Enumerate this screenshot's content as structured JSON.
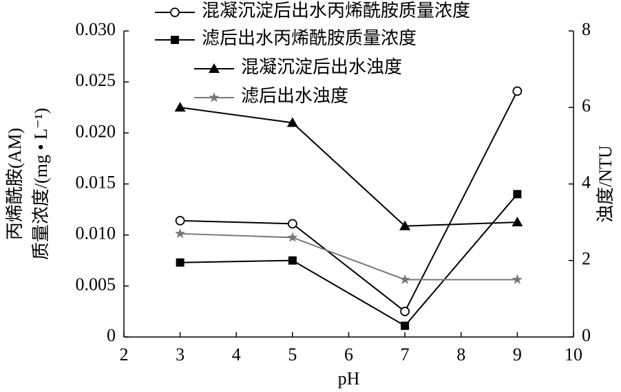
{
  "chart_data": {
    "type": "line",
    "x_label": "pH",
    "y_label": [
      "丙烯酰胺(AM)",
      "质量浓度/(mg • L⁻¹)"
    ],
    "y2_label": "浊度/NTU",
    "x": [
      3,
      5,
      7,
      9
    ],
    "xlim": [
      2,
      10
    ],
    "xticks": [
      2,
      3,
      4,
      5,
      6,
      7,
      8,
      9,
      10
    ],
    "ylim": [
      0,
      0.03
    ],
    "yticks": [
      0,
      0.005,
      {
        "value": 0.01,
        "label": "0.010"
      },
      0.015,
      {
        "value": 0.02,
        "label": "0.020"
      },
      0.025,
      {
        "value": 0.03,
        "label": "0.030"
      }
    ],
    "y2lim": [
      0,
      8
    ],
    "y2ticks": [
      0,
      2,
      4,
      6,
      8
    ],
    "series": [
      {
        "name": "混凝沉淀后出水丙烯酰胺质量浓度",
        "color": "#000000",
        "marker": "circle",
        "values": [
          0.0114,
          0.0111,
          0.0025,
          0.0241
        ]
      },
      {
        "name": "滤后出水丙烯酰胺质量浓度",
        "color": "#000000",
        "marker": "square",
        "values": [
          0.0073,
          0.0075,
          0.0011,
          0.014
        ]
      },
      {
        "name": "混凝沉淀后出水浊度",
        "color": "#000000",
        "marker": "triangle",
        "axis": "y2",
        "values": [
          6.0,
          5.6,
          2.9,
          3.0
        ]
      },
      {
        "name": "滤后出水浊度",
        "color": "#777777",
        "marker": "star",
        "axis": "y2",
        "values": [
          2.7,
          2.6,
          1.5,
          1.5
        ]
      }
    ]
  }
}
